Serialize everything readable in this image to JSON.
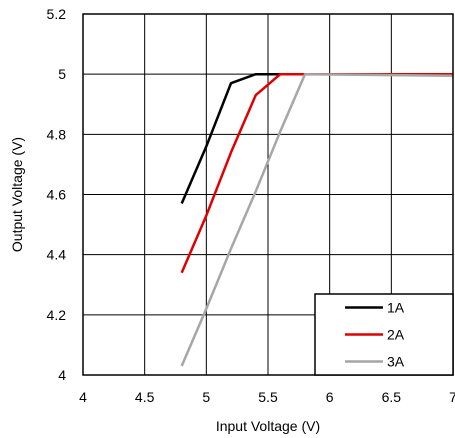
{
  "chart_data": {
    "type": "line",
    "title": "",
    "xlabel": "Input Voltage (V)",
    "ylabel": "Output Voltage (V)",
    "xlim": [
      4,
      7
    ],
    "ylim": [
      4,
      5.2
    ],
    "x_ticks": [
      4,
      4.5,
      5,
      5.5,
      6,
      6.5,
      7
    ],
    "x_tick_labels": [
      "4",
      "4.5",
      "5",
      "5.5",
      "6",
      "6.5",
      "7"
    ],
    "y_ticks": [
      4,
      4.2,
      4.4,
      4.6,
      4.8,
      5,
      5.2
    ],
    "y_tick_labels": [
      "4",
      "4.2",
      "4.4",
      "4.6",
      "4.8",
      "5",
      "5.2"
    ],
    "grid": true,
    "legend_position": "bottom-right",
    "series": [
      {
        "name": "1A",
        "color": "#000000",
        "points": [
          [
            4.8,
            4.57
          ],
          [
            5.0,
            4.76
          ],
          [
            5.2,
            4.97
          ],
          [
            5.4,
            5.0
          ],
          [
            7.0,
            5.0
          ]
        ]
      },
      {
        "name": "2A",
        "color": "#e00000",
        "points": [
          [
            4.8,
            4.34
          ],
          [
            5.0,
            4.53
          ],
          [
            5.2,
            4.74
          ],
          [
            5.4,
            4.93
          ],
          [
            5.6,
            5.0
          ],
          [
            7.0,
            5.0
          ]
        ]
      },
      {
        "name": "3A",
        "color": "#a6a6a6",
        "points": [
          [
            4.8,
            4.03
          ],
          [
            5.0,
            4.22
          ],
          [
            5.2,
            4.42
          ],
          [
            5.4,
            4.61
          ],
          [
            5.6,
            4.81
          ],
          [
            5.8,
            5.0
          ],
          [
            7.0,
            4.995
          ]
        ]
      }
    ]
  }
}
